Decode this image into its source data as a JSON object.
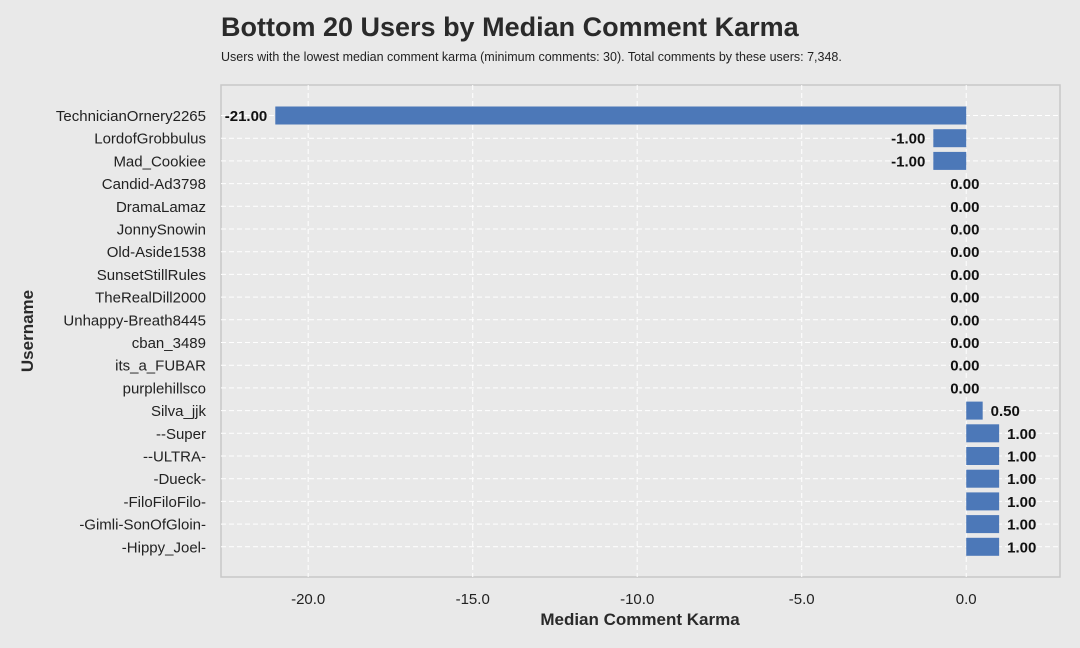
{
  "chart_data": {
    "type": "bar",
    "orientation": "horizontal",
    "title": "Bottom 20 Users by Median Comment Karma",
    "subtitle": "Users with the lowest median comment karma (minimum comments: 30). Total comments by these users: 7,348.",
    "xlabel": "Median Comment Karma",
    "ylabel": "Username",
    "xlim": [
      -22.65,
      2.85
    ],
    "xticks": [
      -20.0,
      -15.0,
      -10.0,
      -5.0,
      0.0
    ],
    "xtick_labels": [
      "-20.0",
      "-15.0",
      "-10.0",
      "-5.0",
      "0.0"
    ],
    "grid": true,
    "bar_color": "#4c78b8",
    "categories": [
      "TechnicianOrnery2265",
      "LordofGrobbulus",
      "Mad_Cookiee",
      "Candid-Ad3798",
      "DramaLamaz",
      "JonnySnowin",
      "Old-Aside1538",
      "SunsetStillRules",
      "TheRealDill2000",
      "Unhappy-Breath8445",
      "cban_3489",
      "its_a_FUBAR",
      "purplehillsco",
      "Silva_jjk",
      "--Super",
      "--ULTRA-",
      "-Dueck-",
      "-FiloFiloFilo-",
      "-Gimli-SonOfGloin-",
      "-Hippy_Joel-"
    ],
    "values": [
      -21.0,
      -1.0,
      -1.0,
      0.0,
      0.0,
      0.0,
      0.0,
      0.0,
      0.0,
      0.0,
      0.0,
      0.0,
      0.0,
      0.5,
      1.0,
      1.0,
      1.0,
      1.0,
      1.0,
      1.0
    ],
    "value_labels": [
      "-21.00",
      "-1.00",
      "-1.00",
      "0.00",
      "0.00",
      "0.00",
      "0.00",
      "0.00",
      "0.00",
      "0.00",
      "0.00",
      "0.00",
      "0.00",
      "0.50",
      "1.00",
      "1.00",
      "1.00",
      "1.00",
      "1.00",
      "1.00"
    ]
  }
}
